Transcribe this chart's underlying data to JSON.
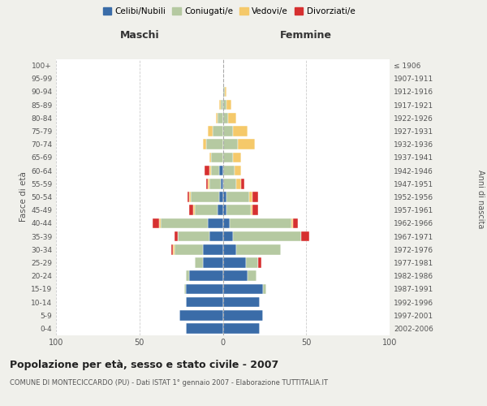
{
  "age_groups": [
    "0-4",
    "5-9",
    "10-14",
    "15-19",
    "20-24",
    "25-29",
    "30-34",
    "35-39",
    "40-44",
    "45-49",
    "50-54",
    "55-59",
    "60-64",
    "65-69",
    "70-74",
    "75-79",
    "80-84",
    "85-89",
    "90-94",
    "95-99",
    "100+"
  ],
  "birth_years": [
    "2002-2006",
    "1997-2001",
    "1992-1996",
    "1987-1991",
    "1982-1986",
    "1977-1981",
    "1972-1976",
    "1967-1971",
    "1962-1966",
    "1957-1961",
    "1952-1956",
    "1947-1951",
    "1942-1946",
    "1937-1941",
    "1932-1936",
    "1927-1931",
    "1922-1926",
    "1917-1921",
    "1912-1916",
    "1907-1911",
    "≤ 1906"
  ],
  "male": {
    "celibi": [
      22,
      26,
      22,
      22,
      20,
      12,
      12,
      8,
      9,
      3,
      2,
      1,
      2,
      0,
      0,
      0,
      0,
      0,
      0,
      0,
      0
    ],
    "coniugati": [
      0,
      0,
      0,
      1,
      2,
      5,
      17,
      19,
      28,
      14,
      17,
      7,
      5,
      7,
      10,
      6,
      3,
      1,
      0,
      0,
      0
    ],
    "vedovi": [
      0,
      0,
      0,
      0,
      0,
      0,
      1,
      0,
      1,
      1,
      1,
      1,
      1,
      1,
      2,
      3,
      1,
      1,
      0,
      0,
      0
    ],
    "divorziati": [
      0,
      0,
      0,
      0,
      0,
      0,
      1,
      2,
      4,
      2,
      1,
      1,
      3,
      0,
      0,
      0,
      0,
      0,
      0,
      0,
      0
    ]
  },
  "female": {
    "nubili": [
      22,
      24,
      22,
      24,
      15,
      14,
      8,
      6,
      4,
      2,
      2,
      0,
      0,
      0,
      0,
      0,
      0,
      0,
      0,
      0,
      0
    ],
    "coniugate": [
      0,
      0,
      0,
      2,
      5,
      7,
      27,
      41,
      37,
      15,
      14,
      8,
      7,
      6,
      9,
      6,
      3,
      2,
      1,
      0,
      0
    ],
    "vedove": [
      0,
      0,
      0,
      0,
      0,
      0,
      0,
      0,
      1,
      1,
      2,
      3,
      4,
      5,
      10,
      9,
      5,
      3,
      1,
      0,
      0
    ],
    "divorziate": [
      0,
      0,
      0,
      0,
      0,
      2,
      0,
      5,
      3,
      3,
      3,
      2,
      0,
      0,
      0,
      0,
      0,
      0,
      0,
      0,
      0
    ]
  },
  "colors": {
    "celibi": "#3a6ca8",
    "coniugati": "#b5c9a1",
    "vedovi": "#f5c96a",
    "divorziati": "#d63030"
  },
  "title": "Popolazione per età, sesso e stato civile - 2007",
  "subtitle": "COMUNE DI MONTECICCARDO (PU) - Dati ISTAT 1° gennaio 2007 - Elaborazione TUTTITALIA.IT",
  "xlabel_left": "Maschi",
  "xlabel_right": "Femmine",
  "ylabel_left": "Fasce di età",
  "ylabel_right": "Anni di nascita",
  "legend_labels": [
    "Celibi/Nubili",
    "Coniugati/e",
    "Vedovi/e",
    "Divorziati/e"
  ],
  "xlim": 100,
  "background_color": "#f0f0eb",
  "plot_bg": "#ffffff"
}
